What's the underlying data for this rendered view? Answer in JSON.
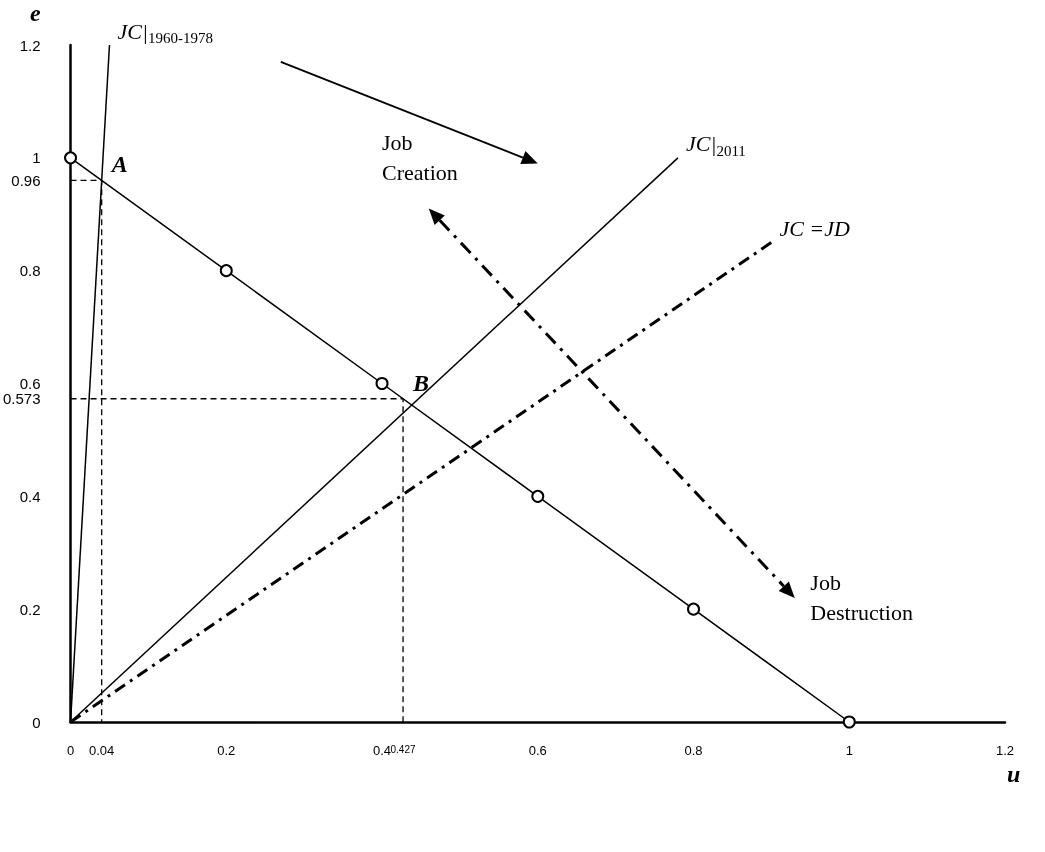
{
  "chart_data": {
    "type": "line",
    "xlabel": "u",
    "ylabel": "e",
    "xlim": [
      0,
      1.2
    ],
    "ylim": [
      0,
      1.2
    ],
    "xticks": [
      0,
      0.04,
      0.2,
      0.4,
      0.427,
      0.6,
      0.8,
      1,
      1.2
    ],
    "yticks": [
      0,
      0.2,
      0.4,
      0.573,
      0.6,
      0.8,
      0.96,
      1,
      1.2
    ],
    "grid": false,
    "legend": false,
    "series": [
      {
        "x": [
          0,
          0.2,
          0.4,
          0.6,
          0.8,
          1
        ],
        "values": [
          1,
          0.8,
          0.6,
          0.4,
          0.2,
          0
        ],
        "color": "#000000",
        "marker": "circle",
        "line_style": "solid"
      },
      {
        "name": "JC|$_{1960-1978}$",
        "x": [
          0,
          0.05
        ],
        "values": [
          0,
          1.2
        ],
        "color": "#000000",
        "marker": "none",
        "line_style": "solid"
      },
      {
        "name": "JC|$_{2011}$",
        "x": [
          0,
          0.78
        ],
        "values": [
          0,
          1
        ],
        "color": "#000000",
        "marker": "none",
        "line_style": "solid"
      },
      {
        "name": "JC =JD",
        "x": [
          0,
          0.9
        ],
        "values": [
          0,
          0.85
        ],
        "color": "#000000",
        "marker": "none",
        "line_style": "dashed"
      },
      {
        "x": [
          0,
          0.04,
          0.04
        ],
        "values": [
          0.96,
          0.96,
          0
        ],
        "color": "#000000",
        "marker": "none",
        "line_style": "dashed"
      },
      {
        "x": [
          0,
          0.427,
          0.427
        ],
        "values": [
          0.573,
          0.573,
          0
        ],
        "color": "#000000",
        "marker": "none",
        "line_style": "dashed"
      }
    ],
    "annotations": [
      {
        "text": "A",
        "x": 0.04,
        "y": 0.96
      },
      {
        "text": "B",
        "x": 0.427,
        "y": 0.573
      },
      "Job Creation",
      "Job Destruction"
    ]
  }
}
